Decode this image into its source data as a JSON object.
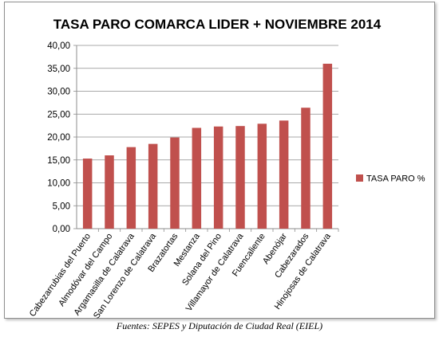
{
  "chart_data": {
    "type": "bar",
    "title": "TASA PARO COMARCA LIDER + NOVIEMBRE 2014",
    "categories": [
      "Cabezarrubias del Puerto",
      "Almodóvar del Campo",
      "Argamasilla de Calatrava",
      "San Lorenzo de Calatrava",
      "Brazatortas",
      "Mestanza",
      "Solana del Pino",
      "Villamayor de Calatrava",
      "Fuencaliente",
      "Abenójar",
      "Cabezarados",
      "Hinojosas de Calatrava"
    ],
    "series": [
      {
        "name": "TASA PARO %",
        "color": "#c0504d",
        "values": [
          15.3,
          16.0,
          17.8,
          18.5,
          19.9,
          22.0,
          22.3,
          22.4,
          22.9,
          23.6,
          26.4,
          36.0
        ]
      }
    ],
    "ylim": [
      0,
      40
    ],
    "yticks": [
      "0,00",
      "5,00",
      "10,00",
      "15,00",
      "20,00",
      "25,00",
      "30,00",
      "35,00",
      "40,00"
    ],
    "grid": true,
    "legend_position": "right"
  },
  "source": "Fuentes: SEPES y Diputación de Ciudad Real (EIEL)"
}
